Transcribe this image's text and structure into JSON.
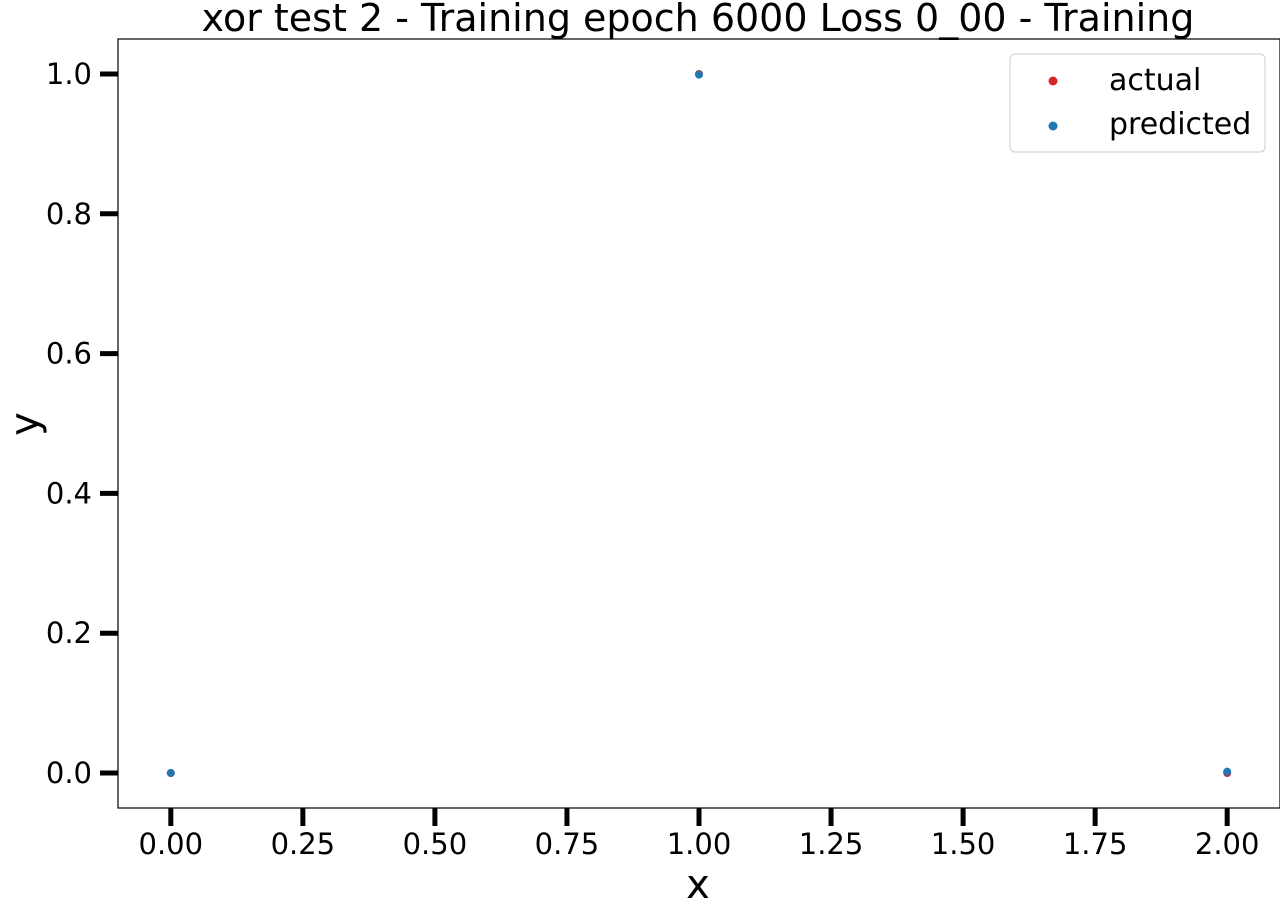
{
  "chart_data": {
    "type": "scatter",
    "title": "xor test 2 - Training epoch 6000 Loss 0_00 - Training",
    "xlabel": "x",
    "ylabel": "y",
    "xlim": [
      -0.1,
      2.1
    ],
    "ylim": [
      -0.05,
      1.05
    ],
    "xticks": [
      0.0,
      0.25,
      0.5,
      0.75,
      1.0,
      1.25,
      1.5,
      1.75,
      2.0
    ],
    "xtick_labels": [
      "0.00",
      "0.25",
      "0.50",
      "0.75",
      "1.00",
      "1.25",
      "1.50",
      "1.75",
      "2.00"
    ],
    "yticks": [
      0.0,
      0.2,
      0.4,
      0.6,
      0.8,
      1.0
    ],
    "ytick_labels": [
      "0.0",
      "0.2",
      "0.4",
      "0.6",
      "0.8",
      "1.0"
    ],
    "grid": false,
    "legend_position": "top-right",
    "series": [
      {
        "name": "actual",
        "color": "#d62728",
        "x": [
          0,
          1,
          2
        ],
        "y": [
          0.0,
          1.0,
          0.0
        ]
      },
      {
        "name": "predicted",
        "color": "#1f77b4",
        "x": [
          0,
          1,
          2
        ],
        "y": [
          0.0,
          0.999,
          0.002
        ]
      }
    ]
  }
}
